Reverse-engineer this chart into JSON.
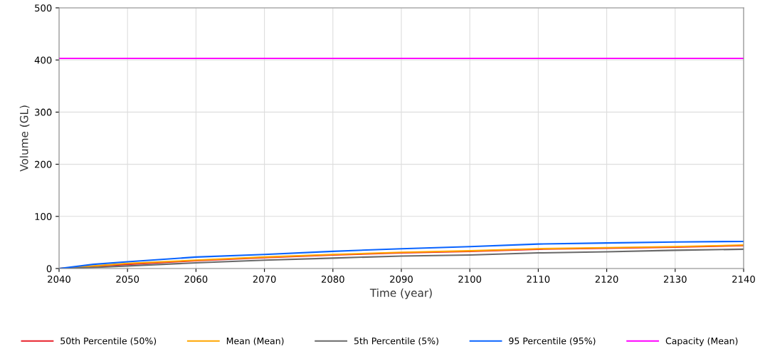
{
  "chart_data": {
    "type": "line",
    "xlabel": "Time (year)",
    "ylabel": "Volume (GL)",
    "x": [
      2040,
      2045,
      2050,
      2060,
      2070,
      2080,
      2090,
      2100,
      2110,
      2120,
      2130,
      2140
    ],
    "series": [
      {
        "name": "50th Percentile (50%)",
        "color": "#e8202a",
        "values": [
          0,
          4,
          8,
          15,
          21,
          26,
          30,
          33,
          37,
          39,
          41,
          44
        ]
      },
      {
        "name": "Mean (Mean)",
        "color": "#ffa500",
        "values": [
          0,
          5,
          10,
          16,
          22,
          27,
          31,
          34,
          38,
          40,
          42,
          45
        ]
      },
      {
        "name": "5th Percentile (5%)",
        "color": "#696969",
        "values": [
          0,
          2,
          5,
          11,
          16,
          20,
          24,
          26,
          30,
          32,
          35,
          37
        ]
      },
      {
        "name": "95 Percentile (95%)",
        "color": "#0a64ff",
        "values": [
          0,
          8,
          13,
          22,
          27,
          33,
          38,
          42,
          47,
          49,
          51,
          52
        ]
      },
      {
        "name": "Capacity (Mean)",
        "color": "#ff00ff",
        "values": [
          403,
          403,
          403,
          403,
          403,
          403,
          403,
          403,
          403,
          403,
          403,
          403
        ]
      }
    ],
    "xlim": [
      2040,
      2140
    ],
    "xticks": [
      2040,
      2050,
      2060,
      2070,
      2080,
      2090,
      2100,
      2110,
      2120,
      2130,
      2140
    ],
    "ylim": [
      0,
      500
    ],
    "yticks": [
      0,
      100,
      200,
      300,
      400,
      500
    ],
    "grid": true,
    "legend": "bottom",
    "line_style": "solid",
    "marker": "none"
  }
}
